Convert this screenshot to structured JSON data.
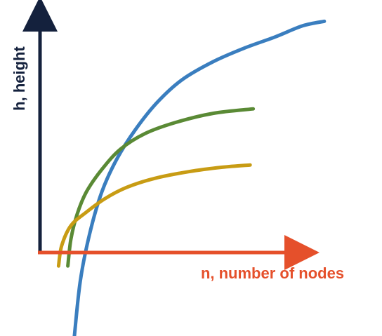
{
  "chart_data": {
    "type": "line",
    "xlabel": "n, number of nodes",
    "ylabel": "h, height",
    "grid": false,
    "legend": "none",
    "axis_colors": {
      "x": "#e5502b",
      "y": "#14213d"
    },
    "series": [
      {
        "color": "#3a7ebf",
        "x": [
          0.11,
          0.13,
          0.16,
          0.2,
          0.25,
          0.31,
          0.38,
          0.46,
          0.56,
          0.66,
          0.76,
          0.85,
          0.92
        ],
        "y": [
          -0.39,
          -0.13,
          0.08,
          0.27,
          0.42,
          0.55,
          0.67,
          0.77,
          0.85,
          0.91,
          0.96,
          1.01,
          1.03
        ]
      },
      {
        "color": "#5a8a35",
        "x": [
          0.09,
          0.1,
          0.12,
          0.15,
          0.2,
          0.26,
          0.34,
          0.44,
          0.56,
          0.69
        ],
        "y": [
          -0.06,
          0.06,
          0.17,
          0.27,
          0.37,
          0.46,
          0.53,
          0.58,
          0.62,
          0.64
        ]
      },
      {
        "color": "#c89c14",
        "x": [
          0.06,
          0.07,
          0.1,
          0.15,
          0.21,
          0.28,
          0.37,
          0.48,
          0.59,
          0.68
        ],
        "y": [
          -0.06,
          0.03,
          0.12,
          0.18,
          0.24,
          0.29,
          0.33,
          0.36,
          0.38,
          0.39
        ]
      }
    ]
  }
}
